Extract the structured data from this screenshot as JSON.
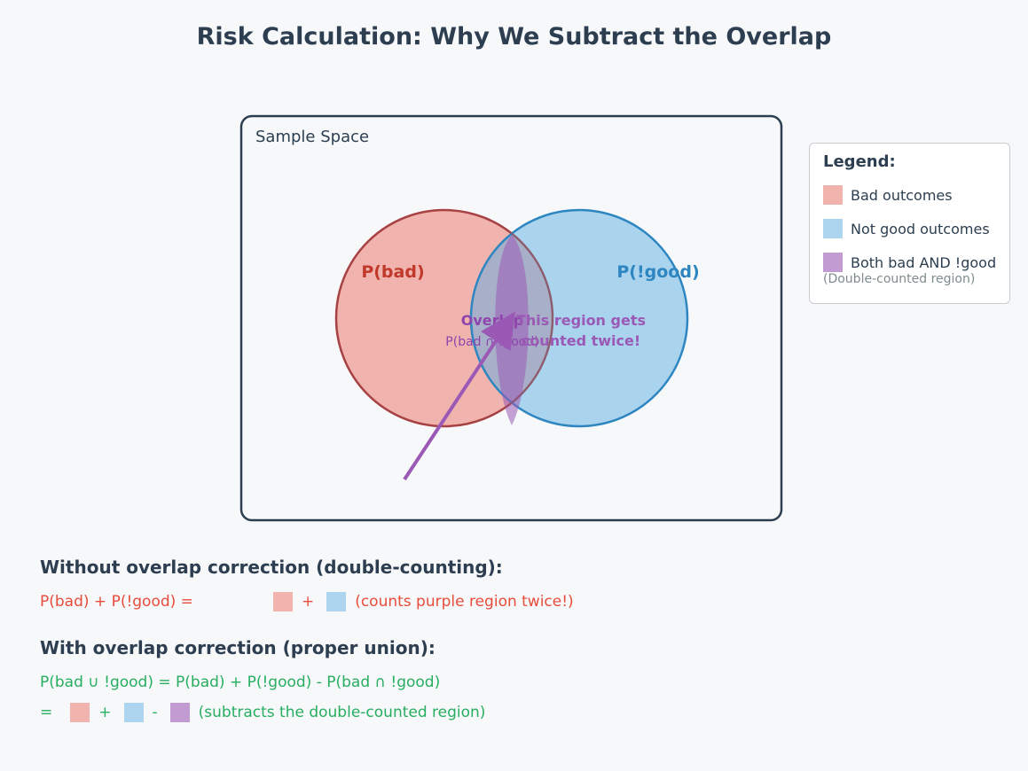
{
  "title": "Risk Calculation: Why We Subtract the Overlap",
  "diagram": {
    "sample_space_label": "Sample Space",
    "circle_bad_label": "P(bad)",
    "circle_notgood_label": "P(!good)",
    "overlap_label": "Overlap",
    "overlap_sublabel": "P(bad ∩ !good)",
    "annotation_line1": "This region gets",
    "annotation_line2": "counted twice!",
    "colors": {
      "bad_fill": "#e74c3c",
      "bad_stroke": "#c0392b",
      "notgood_fill": "#5dade2",
      "notgood_stroke": "#2e86c1",
      "overlap": "#9b59b6",
      "frame": "#2c3e50"
    }
  },
  "legend": {
    "title": "Legend:",
    "items": [
      {
        "label": "Bad outcomes",
        "color": "#f1b3ae"
      },
      {
        "label": "Not good outcomes",
        "color": "#aed5ef"
      },
      {
        "label": "Both bad AND !good",
        "color": "#c39bd3"
      }
    ],
    "note": "(Double-counted region)"
  },
  "without": {
    "heading": "Without overlap correction (double-counting):",
    "formula": "P(bad) + P(!good) =",
    "plus": "+",
    "note": "(counts purple region twice!)"
  },
  "with": {
    "heading": "With overlap correction (proper union):",
    "formula": "P(bad ∪ !good) = P(bad) + P(!good) - P(bad ∩ !good)",
    "equals": "=",
    "plus": "+",
    "minus": "-",
    "note": "(subtracts the double-counted region)"
  }
}
